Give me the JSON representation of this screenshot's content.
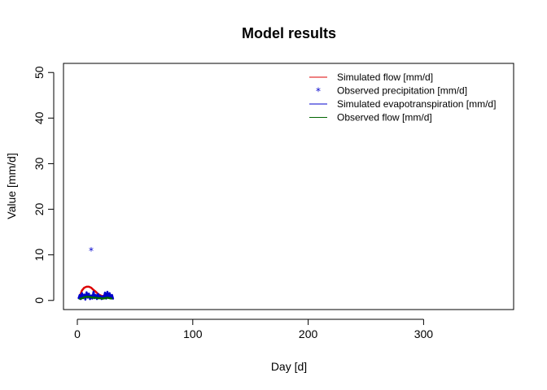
{
  "chart_data": {
    "type": "line",
    "title": "Model results",
    "xlabel": "Day [d]",
    "ylabel": "Value [mm/d]",
    "xlim": [
      -12,
      378
    ],
    "ylim": [
      -2,
      52
    ],
    "xticks": [
      0,
      100,
      200,
      300
    ],
    "yticks": [
      0,
      10,
      20,
      30,
      40,
      50
    ],
    "legend_position": "top-right",
    "legend": [
      {
        "label": "Simulated flow [mm/d]",
        "kind": "line",
        "color": "#dd0000"
      },
      {
        "label": "Observed precipitation [mm/d]",
        "kind": "marker",
        "marker": "*",
        "color": "#0000cc"
      },
      {
        "label": "Simulated evapotranspiration [mm/d]",
        "kind": "line",
        "color": "#0000cc"
      },
      {
        "label": "Observed flow [mm/d]",
        "kind": "line",
        "color": "#006600"
      }
    ],
    "series": [
      {
        "name": "Simulated flow [mm/d]",
        "kind": "line",
        "color": "#dd0000",
        "x": [
          2,
          4,
          6,
          8,
          10,
          12,
          14,
          16,
          18,
          20,
          22,
          24,
          26,
          28,
          30
        ],
        "y": [
          0.8,
          2.2,
          2.8,
          3.0,
          3.0,
          2.8,
          2.3,
          1.9,
          1.4,
          1.1,
          0.9,
          1.2,
          1.4,
          1.2,
          1.0
        ]
      },
      {
        "name": "Simulated evapotranspiration [mm/d]",
        "kind": "line",
        "color": "#0000cc",
        "x": [
          1,
          2,
          3,
          4,
          5,
          6,
          7,
          8,
          9,
          10,
          11,
          12,
          13,
          14,
          15,
          16,
          17,
          18,
          19,
          20,
          21,
          22,
          23,
          24,
          25,
          26,
          27,
          28,
          29,
          30,
          31
        ],
        "y": [
          0.4,
          1.2,
          0.3,
          1.6,
          0.5,
          1.3,
          0.2,
          1.8,
          0.6,
          1.5,
          0.3,
          1.1,
          0.4,
          1.9,
          0.5,
          1.2,
          0.3,
          1.4,
          0.5,
          1.0,
          0.3,
          0.9,
          0.6,
          1.7,
          0.4,
          1.9,
          0.8,
          1.6,
          0.5,
          1.2,
          0.3
        ]
      },
      {
        "name": "Observed flow [mm/d]",
        "kind": "line",
        "color": "#006600",
        "x": [
          2,
          4,
          6,
          8,
          10,
          12,
          14,
          16,
          18,
          20,
          22,
          24,
          26,
          28,
          30
        ],
        "y": [
          0.3,
          0.5,
          0.7,
          0.8,
          0.8,
          0.7,
          0.6,
          0.6,
          0.5,
          0.5,
          0.4,
          0.5,
          0.6,
          0.5,
          0.4
        ]
      },
      {
        "name": "Observed precipitation [mm/d]",
        "kind": "marker",
        "color": "#0000cc",
        "x": [
          12
        ],
        "y": [
          11
        ]
      }
    ]
  }
}
